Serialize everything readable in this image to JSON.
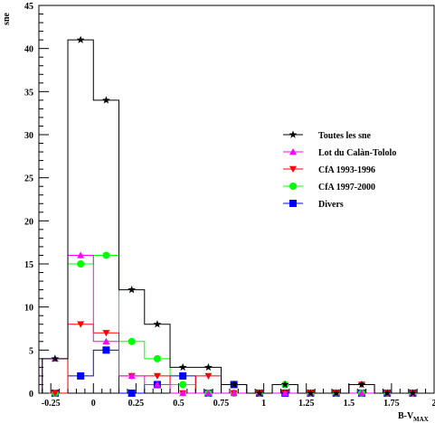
{
  "chart_data": {
    "type": "histogram",
    "xlabel": "B-V",
    "xlabel_sub": "MAX",
    "ylabel": "sne",
    "xlim": [
      -0.32,
      2.0
    ],
    "ylim": [
      0,
      45
    ],
    "x_ticks": [
      -0.25,
      0,
      0.25,
      0.5,
      0.75,
      1,
      1.25,
      1.5,
      1.75,
      2
    ],
    "x_tick_labels": [
      "-0.25",
      "0",
      "0.25",
      "0.5",
      "0.75",
      "1",
      "1.25",
      "1.5",
      "1.75",
      "2"
    ],
    "y_ticks": [
      0,
      5,
      10,
      15,
      20,
      25,
      30,
      35,
      40,
      45
    ],
    "y_tick_labels": [
      "0",
      "5",
      "10",
      "15",
      "20",
      "25",
      "30",
      "35",
      "40",
      "45"
    ],
    "grid": false,
    "legend_position": "right",
    "bin_centers": [
      -0.225,
      -0.075,
      0.075,
      0.225,
      0.375,
      0.525,
      0.675,
      0.825,
      0.975,
      1.125,
      1.275,
      1.425,
      1.575,
      1.725,
      1.875
    ],
    "bin_width": 0.15,
    "series": [
      {
        "name": "Toutes les sne",
        "color": "#000000",
        "marker": "star",
        "values": [
          4,
          41,
          34,
          12,
          8,
          3,
          3,
          1,
          0,
          1,
          0,
          0,
          1,
          0,
          0
        ]
      },
      {
        "name": "Lot du Calàn-Tololo",
        "color": "#ff00ff",
        "marker": "triangle-up",
        "values": [
          4,
          16,
          6,
          2,
          1,
          0,
          0,
          0,
          0,
          0,
          0,
          0,
          0,
          0,
          0
        ]
      },
      {
        "name": "CfA 1993-1996",
        "color": "#ff0000",
        "marker": "triangle-down",
        "values": [
          0,
          8,
          7,
          2,
          2,
          0,
          2,
          0,
          0,
          0,
          0,
          0,
          1,
          0,
          0
        ]
      },
      {
        "name": "CfA 1997-2000",
        "color": "#00ff00",
        "marker": "circle",
        "values": [
          0,
          15,
          16,
          6,
          4,
          1,
          0,
          0,
          0,
          1,
          0,
          0,
          0,
          0,
          0
        ]
      },
      {
        "name": "Divers",
        "color": "#0000ff",
        "marker": "square",
        "values": [
          0,
          2,
          5,
          0,
          1,
          2,
          0,
          1,
          0,
          0,
          0,
          0,
          0,
          0,
          0
        ]
      }
    ]
  }
}
